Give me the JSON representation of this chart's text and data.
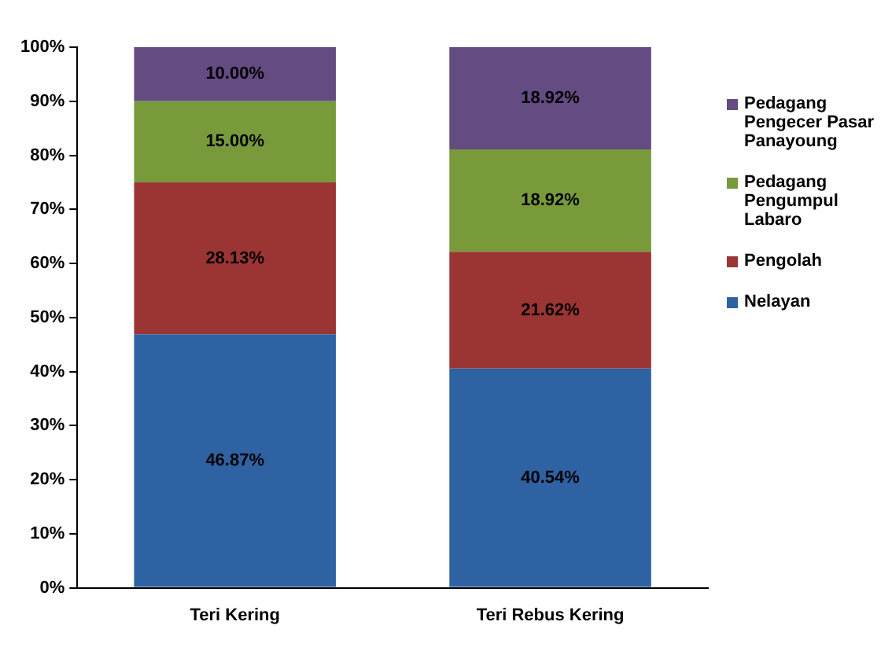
{
  "chart_data": {
    "type": "bar",
    "stacked": true,
    "categories": [
      "Teri Kering",
      "Teri Rebus Kering"
    ],
    "series": [
      {
        "name": "Nelayan",
        "color": "#2e62a3",
        "values": [
          46.87,
          40.54
        ],
        "value_labels": [
          "46.87%",
          "40.54%"
        ]
      },
      {
        "name": "Pengolah",
        "color": "#9b3533",
        "values": [
          28.13,
          21.62
        ],
        "value_labels": [
          "28.13%",
          "21.62%"
        ]
      },
      {
        "name": "Pedagang Pengumpul Labaro",
        "color": "#789a3b",
        "values": [
          15.0,
          18.92
        ],
        "value_labels": [
          "15.00%",
          "18.92%"
        ]
      },
      {
        "name": "Pedagang Pengecer Pasar Panayoung",
        "color": "#644b82",
        "values": [
          10.0,
          18.92
        ],
        "value_labels": [
          "10.00%",
          "18.92%"
        ]
      }
    ],
    "ylim": [
      0,
      100
    ],
    "yticks": [
      {
        "value": 0,
        "label": "0%"
      },
      {
        "value": 10,
        "label": "10%"
      },
      {
        "value": 20,
        "label": "20%"
      },
      {
        "value": 30,
        "label": "30%"
      },
      {
        "value": 40,
        "label": "40%"
      },
      {
        "value": 50,
        "label": "50%"
      },
      {
        "value": 60,
        "label": "60%"
      },
      {
        "value": 70,
        "label": "70%"
      },
      {
        "value": 80,
        "label": "80%"
      },
      {
        "value": 90,
        "label": "90%"
      },
      {
        "value": 100,
        "label": "100%"
      }
    ],
    "grid": false,
    "legend": "right"
  }
}
